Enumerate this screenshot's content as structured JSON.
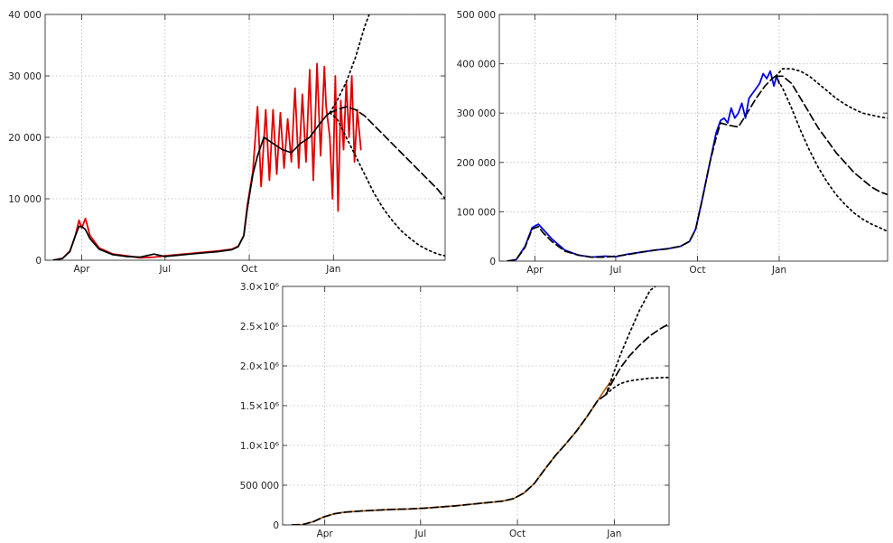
{
  "chart_data": [
    {
      "type": "line",
      "title": "",
      "xlabel": "",
      "ylabel": "",
      "x_tick_labels": [
        "Apr",
        "Jul",
        "Oct",
        "Jan"
      ],
      "x_tick_days": [
        91,
        182,
        274,
        366
      ],
      "xlim": [
        51,
        488
      ],
      "y_tick_labels": [
        "0",
        "10 000",
        "20 000",
        "30 000",
        "40 000"
      ],
      "y_tick_values": [
        0,
        10000,
        20000,
        30000,
        40000
      ],
      "ylim": [
        0,
        40000
      ],
      "grid": true,
      "colors": {
        "observed": "#e00000",
        "fit": "#000000"
      },
      "series": [
        {
          "style": "solid",
          "x": [
            60,
            70,
            78,
            84,
            88,
            91,
            95,
            100,
            110,
            125,
            140,
            155,
            170,
            182,
            195,
            210,
            225,
            240,
            255,
            262,
            268,
            272,
            278,
            283,
            287,
            292,
            296,
            300,
            304,
            308,
            312,
            316,
            320,
            324,
            328,
            332,
            336,
            340,
            344,
            348,
            352,
            356,
            358,
            362,
            365,
            368,
            371,
            374,
            377,
            380,
            383,
            386,
            389,
            392,
            396
          ],
          "y": [
            0,
            300,
            1500,
            4000,
            6500,
            5200,
            6800,
            4000,
            2000,
            1000,
            700,
            400,
            500,
            700,
            900,
            1100,
            1300,
            1500,
            1800,
            2300,
            4000,
            9000,
            14500,
            25000,
            12000,
            24500,
            13000,
            24500,
            14000,
            24000,
            15000,
            23000,
            16000,
            28000,
            15000,
            27000,
            16000,
            31000,
            13000,
            32000,
            17000,
            31500,
            25000,
            20000,
            10000,
            30000,
            8000,
            26000,
            18000,
            29000,
            20000,
            30000,
            16000,
            24500,
            18000
          ]
        },
        {
          "style": "solid",
          "x": [
            60,
            70,
            78,
            84,
            88,
            91,
            95,
            100,
            110,
            125,
            140,
            155,
            170,
            182,
            195,
            210,
            225,
            240,
            255,
            262,
            268,
            272,
            278,
            283,
            290,
            300,
            310,
            320,
            330,
            340,
            350,
            358,
            362
          ],
          "y": [
            0,
            300,
            1400,
            4000,
            5500,
            5500,
            5000,
            3500,
            1800,
            900,
            600,
            500,
            1000,
            600,
            800,
            1000,
            1200,
            1400,
            1700,
            2200,
            4000,
            8500,
            14000,
            17000,
            20000,
            19000,
            18000,
            17500,
            19000,
            20000,
            22000,
            23500,
            24000
          ]
        },
        {
          "style": "dashed",
          "x": [
            362,
            370,
            380,
            390,
            400,
            410,
            420,
            430,
            440,
            450,
            460,
            470,
            480,
            488
          ],
          "y": [
            24000,
            24500,
            25000,
            24500,
            23500,
            22000,
            20500,
            19000,
            17500,
            16000,
            14500,
            13000,
            11500,
            10000
          ]
        },
        {
          "style": "dotted",
          "x": [
            362,
            370,
            380,
            390,
            400,
            405
          ],
          "y": [
            24000,
            26000,
            29000,
            33000,
            38000,
            40000
          ]
        },
        {
          "style": "dotted",
          "x": [
            362,
            370,
            380,
            390,
            400,
            410,
            420,
            430,
            440,
            450,
            460,
            470,
            480,
            488
          ],
          "y": [
            24000,
            23000,
            20000,
            17000,
            14000,
            11000,
            8500,
            6500,
            4800,
            3500,
            2400,
            1600,
            1000,
            700
          ]
        }
      ]
    },
    {
      "type": "line",
      "title": "",
      "xlabel": "",
      "ylabel": "",
      "x_tick_labels": [
        "Apr",
        "Jul",
        "Oct",
        "Jan"
      ],
      "x_tick_days": [
        91,
        182,
        274,
        366
      ],
      "xlim": [
        51,
        488
      ],
      "y_tick_labels": [
        "0",
        "100 000",
        "200 000",
        "300 000",
        "400 000",
        "500 000"
      ],
      "y_tick_values": [
        0,
        100000,
        200000,
        300000,
        400000,
        500000
      ],
      "ylim": [
        0,
        500000
      ],
      "grid": true,
      "colors": {
        "observed": "#0000e0",
        "fit": "#000000"
      },
      "series": [
        {
          "style": "solid",
          "x": [
            60,
            70,
            80,
            88,
            95,
            100,
            110,
            125,
            140,
            155,
            170,
            182,
            195,
            210,
            225,
            240,
            255,
            265,
            272,
            280,
            288,
            295,
            300,
            304,
            308,
            312,
            316,
            320,
            324,
            328,
            332,
            336,
            340,
            344,
            348,
            352,
            356,
            360,
            363,
            366
          ],
          "y": [
            0,
            3000,
            30000,
            68000,
            75000,
            65000,
            45000,
            22000,
            12000,
            8000,
            10000,
            9000,
            14000,
            18000,
            22000,
            25000,
            30000,
            40000,
            65000,
            130000,
            200000,
            260000,
            285000,
            290000,
            280000,
            310000,
            290000,
            300000,
            320000,
            290000,
            330000,
            340000,
            350000,
            360000,
            380000,
            370000,
            385000,
            355000,
            375000,
            360000
          ]
        },
        {
          "style": "dashed",
          "x": [
            60,
            70,
            80,
            88,
            95,
            100,
            110,
            125,
            140,
            155,
            170,
            182,
            195,
            210,
            225,
            240,
            255,
            265,
            272,
            280,
            288,
            295,
            300,
            310,
            320,
            330,
            340,
            350,
            358,
            362
          ],
          "y": [
            0,
            3000,
            28000,
            65000,
            70000,
            58000,
            40000,
            20000,
            12000,
            8000,
            8000,
            10000,
            13000,
            18000,
            22000,
            25000,
            30000,
            40000,
            65000,
            130000,
            200000,
            250000,
            280000,
            275000,
            272000,
            300000,
            330000,
            355000,
            370000,
            375000
          ]
        },
        {
          "style": "dashed",
          "x": [
            362,
            370,
            380,
            390,
            400,
            410,
            420,
            430,
            440,
            450,
            460,
            470,
            480,
            488
          ],
          "y": [
            375000,
            375000,
            360000,
            330000,
            300000,
            270000,
            245000,
            220000,
            200000,
            180000,
            165000,
            150000,
            140000,
            135000
          ]
        },
        {
          "style": "dotted",
          "x": [
            362,
            370,
            380,
            390,
            400,
            410,
            420,
            430,
            440,
            450,
            460,
            470,
            480,
            488
          ],
          "y": [
            375000,
            390000,
            390000,
            385000,
            375000,
            360000,
            345000,
            330000,
            318000,
            308000,
            300000,
            296000,
            292000,
            290000
          ]
        },
        {
          "style": "dotted",
          "x": [
            362,
            370,
            380,
            390,
            400,
            410,
            420,
            430,
            440,
            450,
            460,
            470,
            480,
            488
          ],
          "y": [
            375000,
            350000,
            310000,
            265000,
            225000,
            190000,
            160000,
            135000,
            115000,
            98000,
            85000,
            75000,
            67000,
            60000
          ]
        }
      ]
    },
    {
      "type": "line",
      "title": "",
      "xlabel": "",
      "ylabel": "",
      "x_tick_labels": [
        "Apr",
        "Jul",
        "Oct",
        "Jan"
      ],
      "x_tick_days": [
        91,
        182,
        274,
        366
      ],
      "xlim": [
        51,
        418
      ],
      "y_tick_labels": [
        "0",
        "500 000",
        "1.0×10⁶",
        "1.5×10⁶",
        "2.0×10⁶",
        "2.5×10⁶",
        "3.0×10⁶"
      ],
      "y_tick_values": [
        0,
        500000,
        1000000,
        1500000,
        2000000,
        2500000,
        3000000
      ],
      "ylim": [
        0,
        3000000
      ],
      "grid": true,
      "colors": {
        "observed": "#b5651d",
        "fit": "#000000"
      },
      "series": [
        {
          "style": "solid",
          "x": [
            60,
            70,
            80,
            90,
            100,
            110,
            125,
            140,
            155,
            170,
            185,
            200,
            215,
            230,
            245,
            260,
            270,
            280,
            290,
            300,
            310,
            320,
            330,
            340,
            350,
            358,
            364
          ],
          "y": [
            0,
            5000,
            40000,
            100000,
            140000,
            160000,
            175000,
            185000,
            195000,
            200000,
            210000,
            225000,
            240000,
            260000,
            280000,
            300000,
            330000,
            400000,
            520000,
            700000,
            870000,
            1020000,
            1180000,
            1360000,
            1560000,
            1720000,
            1830000
          ]
        },
        {
          "style": "dashed",
          "x": [
            60,
            70,
            80,
            90,
            100,
            110,
            125,
            140,
            155,
            170,
            185,
            200,
            215,
            230,
            245,
            260,
            270,
            280,
            290,
            300,
            310,
            320,
            330,
            340,
            350,
            358
          ],
          "y": [
            0,
            5000,
            40000,
            100000,
            140000,
            160000,
            175000,
            185000,
            195000,
            200000,
            210000,
            225000,
            240000,
            260000,
            280000,
            300000,
            330000,
            400000,
            520000,
            700000,
            870000,
            1020000,
            1180000,
            1360000,
            1560000,
            1640000
          ]
        },
        {
          "style": "dashed",
          "x": [
            358,
            365,
            372,
            380,
            390,
            400,
            410,
            418
          ],
          "y": [
            1640000,
            1820000,
            1980000,
            2120000,
            2260000,
            2380000,
            2470000,
            2530000
          ]
        },
        {
          "style": "dotted",
          "x": [
            358,
            365,
            372,
            380,
            390,
            400,
            405
          ],
          "y": [
            1640000,
            1900000,
            2150000,
            2400000,
            2700000,
            2950000,
            3000000
          ]
        },
        {
          "style": "dotted",
          "x": [
            358,
            365,
            372,
            380,
            390,
            400,
            410,
            418
          ],
          "y": [
            1640000,
            1720000,
            1780000,
            1810000,
            1830000,
            1845000,
            1852000,
            1855000
          ]
        }
      ]
    }
  ]
}
